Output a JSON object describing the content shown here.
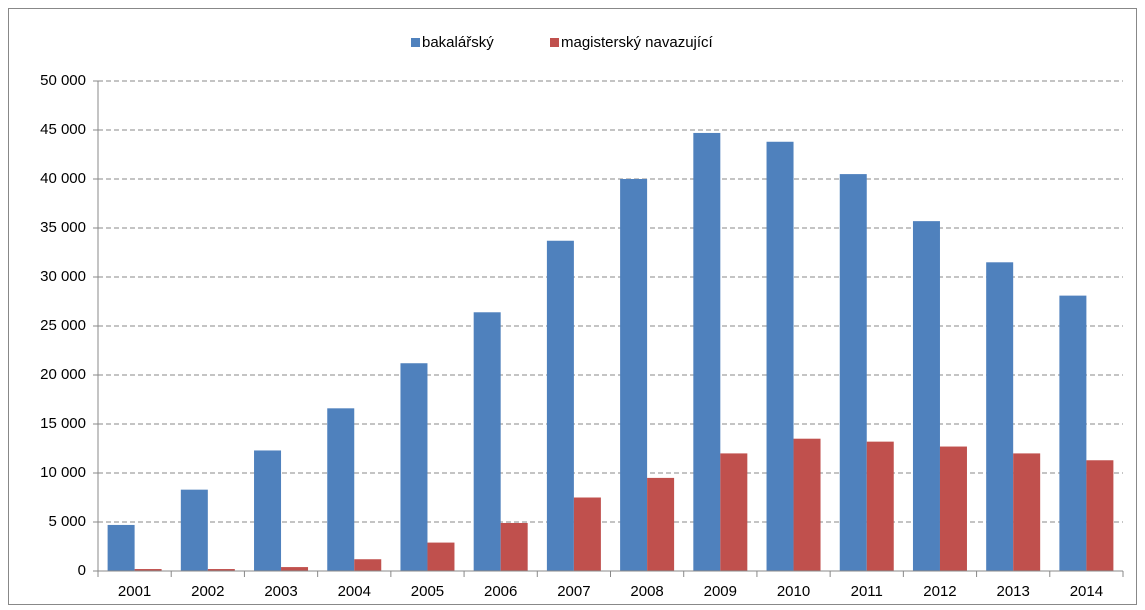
{
  "chart_data": {
    "type": "bar",
    "categories": [
      "2001",
      "2002",
      "2003",
      "2004",
      "2005",
      "2006",
      "2007",
      "2008",
      "2009",
      "2010",
      "2011",
      "2012",
      "2013",
      "2014"
    ],
    "series": [
      {
        "name": "bakalářský",
        "color": "#4f81bd",
        "values": [
          4700,
          8300,
          12300,
          16600,
          21200,
          26400,
          33700,
          40000,
          44700,
          43800,
          40500,
          35700,
          31500,
          28100
        ]
      },
      {
        "name": "magisterský navazující",
        "color": "#c0504d",
        "values": [
          200,
          200,
          400,
          1200,
          2900,
          4900,
          7500,
          9500,
          12000,
          13500,
          13200,
          12700,
          12000,
          11300
        ]
      }
    ],
    "ylim": [
      0,
      50000
    ],
    "yticks": [
      0,
      {
        "value": 5000,
        "label": "5 000"
      },
      {
        "value": 10000,
        "label": "10 000"
      },
      {
        "value": 15000,
        "label": "15 000"
      },
      {
        "value": 20000,
        "label": "20 000"
      },
      {
        "value": 25000,
        "label": "25 000"
      },
      {
        "value": 30000,
        "label": "30 000"
      },
      {
        "value": 35000,
        "label": "35 000"
      },
      {
        "value": 40000,
        "label": "40 000"
      },
      {
        "value": 45000,
        "label": "45 000"
      },
      {
        "value": 50000,
        "label": "50 000"
      }
    ],
    "grid": true,
    "legend": "top"
  }
}
